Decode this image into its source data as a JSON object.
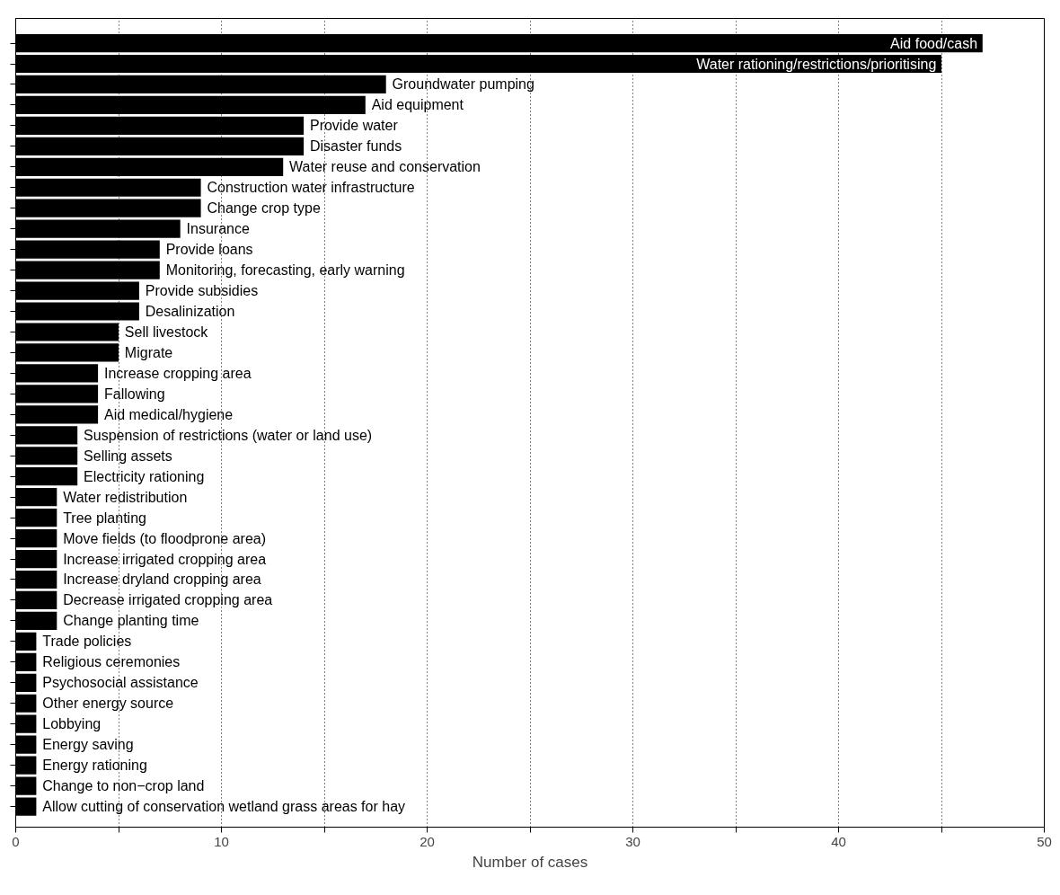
{
  "chart_data": {
    "type": "bar",
    "orientation": "horizontal",
    "xlabel": "Number of cases",
    "categories": [
      "Aid food/cash",
      "Water rationing/restrictions/prioritising",
      "Groundwater pumping",
      "Aid equipment",
      "Provide water",
      "Disaster funds",
      "Water reuse and conservation",
      "Construction water infrastructure",
      "Change crop type",
      "Insurance",
      "Provide loans",
      "Monitoring, forecasting, early warning",
      "Provide subsidies",
      "Desalinization",
      "Sell livestock",
      "Migrate",
      "Increase cropping area",
      "Fallowing",
      "Aid medical/hygiene",
      "Suspension of restrictions (water or land use)",
      "Selling assets",
      "Electricity rationing",
      "Water redistribution",
      "Tree planting",
      "Move fields (to floodprone area)",
      "Increase irrigated cropping area",
      "Increase dryland cropping area",
      "Decrease irrigated cropping area",
      "Change planting time",
      "Trade policies",
      "Religious ceremonies",
      "Psychosocial assistance",
      "Other energy source",
      "Lobbying",
      "Energy saving",
      "Energy rationing",
      "Change to non−crop land",
      "Allow cutting of conservation wetland grass areas for hay"
    ],
    "values": [
      47,
      45,
      18,
      17,
      14,
      14,
      13,
      9,
      9,
      8,
      7,
      7,
      6,
      6,
      5,
      5,
      4,
      4,
      4,
      3,
      3,
      3,
      2,
      2,
      2,
      2,
      2,
      2,
      2,
      1,
      1,
      1,
      1,
      1,
      1,
      1,
      1,
      1
    ],
    "color": "#000000",
    "xlim": [
      0,
      50
    ],
    "xticks": [
      0,
      {
        "value": 5,
        "label": null
      },
      10,
      {
        "value": 15,
        "label": null
      },
      20,
      {
        "value": 25,
        "label": null
      },
      30,
      {
        "value": 35,
        "label": null
      },
      40,
      {
        "value": 45,
        "label": null
      },
      50
    ],
    "grid": "x",
    "tick_labels": "x"
  }
}
